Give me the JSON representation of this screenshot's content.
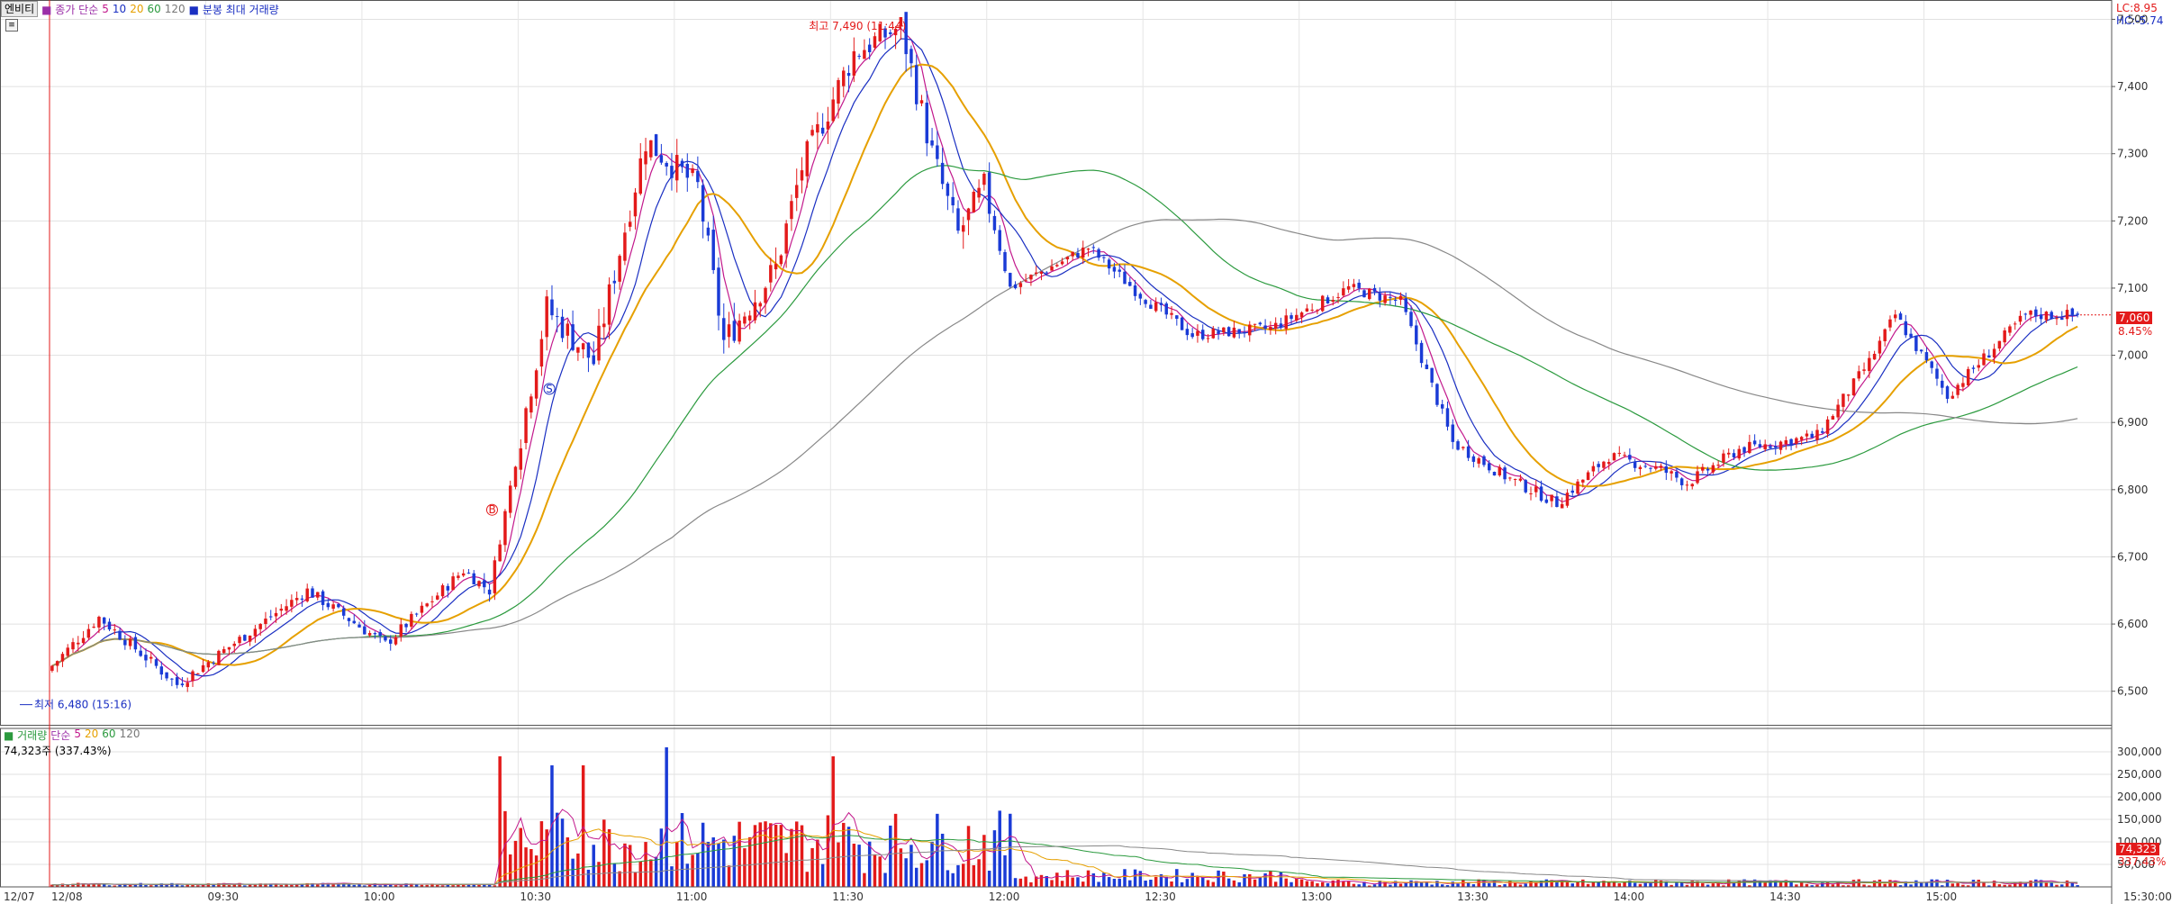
{
  "toolbar": {
    "button": "엔비티",
    "ma_label": "종가 단순",
    "ma_periods": [
      "5",
      "10",
      "20",
      "60",
      "120"
    ],
    "extra_label": "분봉 최대 거래량"
  },
  "right_top": {
    "lc": "LC:8.95",
    "hc": "HC:-5.74"
  },
  "price_panel": {
    "y_ticks": [
      "7,500",
      "7,400",
      "7,300",
      "7,200",
      "7,100",
      "7,000",
      "6,900",
      "6,800",
      "6,700",
      "6,600",
      "6,500"
    ],
    "y_min": 6450,
    "y_max": 7510,
    "high_annotation": "최고 7,490 (11:44)",
    "low_annotation": "최저 6,480 (15:16)",
    "current_price": "7,060",
    "current_change": "8.45%",
    "signal_labels": [
      "B",
      "S"
    ]
  },
  "volume_panel": {
    "label": "거래량",
    "ma_label": "단순",
    "ma_periods": [
      "5",
      "20",
      "60",
      "120"
    ],
    "summary": "74,323주 (337.43%)",
    "y_ticks": [
      "300,000",
      "250,000",
      "200,000",
      "150,000",
      "100,000",
      "50,000"
    ],
    "y_max": 320000,
    "current_volume": "74,323",
    "current_pct": "337.43%"
  },
  "x_axis": {
    "labels": [
      "12/07",
      "12/08",
      "09:30",
      "10:00",
      "10:30",
      "11:00",
      "11:30",
      "12:00",
      "12:30",
      "13:00",
      "13:30",
      "14:00",
      "14:30",
      "15:00",
      "15:30:00"
    ]
  },
  "chart_data": {
    "type": "candlestick",
    "time_range": [
      "09:00",
      "15:30"
    ],
    "price_range": [
      6480,
      7490
    ],
    "key_points": [
      {
        "time": "09:00",
        "price": 6530
      },
      {
        "time": "09:10",
        "price": 6610
      },
      {
        "time": "09:25",
        "price": 6510
      },
      {
        "time": "09:50",
        "price": 6650
      },
      {
        "time": "10:05",
        "price": 6570
      },
      {
        "time": "10:20",
        "price": 6680
      },
      {
        "time": "10:25",
        "price": 6650
      },
      {
        "time": "10:32",
        "price": 6920
      },
      {
        "time": "10:36",
        "price": 7070
      },
      {
        "time": "10:45",
        "price": 6990
      },
      {
        "time": "10:55",
        "price": 7320
      },
      {
        "time": "11:05",
        "price": 7250
      },
      {
        "time": "11:10",
        "price": 7020
      },
      {
        "time": "11:20",
        "price": 7130
      },
      {
        "time": "11:25",
        "price": 7280
      },
      {
        "time": "11:35",
        "price": 7450
      },
      {
        "time": "11:44",
        "price": 7490
      },
      {
        "time": "11:50",
        "price": 7300
      },
      {
        "time": "11:55",
        "price": 7180
      },
      {
        "time": "12:00",
        "price": 7250
      },
      {
        "time": "12:05",
        "price": 7100
      },
      {
        "time": "12:20",
        "price": 7160
      },
      {
        "time": "12:30",
        "price": 7090
      },
      {
        "time": "12:40",
        "price": 7030
      },
      {
        "time": "12:55",
        "price": 7040
      },
      {
        "time": "13:10",
        "price": 7100
      },
      {
        "time": "13:20",
        "price": 7080
      },
      {
        "time": "13:30",
        "price": 6870
      },
      {
        "time": "13:40",
        "price": 6820
      },
      {
        "time": "13:50",
        "price": 6780
      },
      {
        "time": "14:00",
        "price": 6850
      },
      {
        "time": "14:10",
        "price": 6830
      },
      {
        "time": "14:15",
        "price": 6810
      },
      {
        "time": "14:25",
        "price": 6860
      },
      {
        "time": "14:40",
        "price": 6880
      },
      {
        "time": "14:50",
        "price": 6990
      },
      {
        "time": "14:55",
        "price": 7060
      },
      {
        "time": "15:05",
        "price": 6940
      },
      {
        "time": "15:15",
        "price": 7020
      },
      {
        "time": "15:20",
        "price": 7060
      }
    ],
    "volume_peaks": [
      {
        "time": "10:26",
        "volume": 290000
      },
      {
        "time": "10:36",
        "volume": 270000
      },
      {
        "time": "10:42",
        "volume": 270000
      },
      {
        "time": "10:58",
        "volume": 310000
      },
      {
        "time": "11:30",
        "volume": 290000
      },
      {
        "time": "15:30",
        "volume": 74323
      }
    ]
  }
}
